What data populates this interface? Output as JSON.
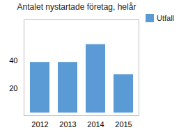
{
  "chart_data": {
    "type": "bar",
    "title": "Antalet nystartade företag, helår",
    "categories": [
      "2012",
      "2013",
      "2014",
      "2015"
    ],
    "series": [
      {
        "name": "Utfall",
        "color": "#5b9bd5",
        "values": [
          41,
          41,
          54,
          32
        ]
      }
    ],
    "ylim": [
      0,
      70
    ],
    "yticks": [
      20,
      40
    ],
    "grid": false,
    "legend": "top-right"
  }
}
